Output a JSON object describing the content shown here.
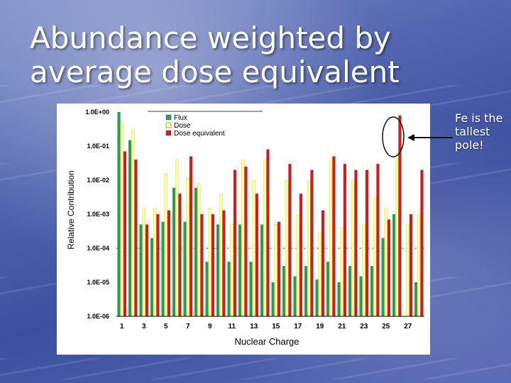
{
  "slide": {
    "title": "Abundance weighted by average dose equivalent",
    "callout": "Fe is the tallest pole!"
  },
  "chart_data": {
    "type": "bar",
    "ylabel": "Relative Contribution",
    "xlabel": "Nuclear Charge",
    "yscale": "log",
    "ylim": [
      1e-06,
      1
    ],
    "y_ticks": [
      "1.0E-06",
      "1.0E-05",
      "1.0E-04",
      "1.0E-03",
      "1.0E-02",
      "1.0E-01",
      "1.0E+00"
    ],
    "x": [
      1,
      2,
      3,
      4,
      5,
      6,
      7,
      8,
      9,
      10,
      11,
      12,
      13,
      14,
      15,
      16,
      17,
      18,
      19,
      20,
      21,
      22,
      23,
      24,
      25,
      26,
      27,
      28
    ],
    "x_tick_labels": [
      "1",
      "3",
      "5",
      "7",
      "9",
      "11",
      "13",
      "15",
      "17",
      "19",
      "21",
      "23",
      "25",
      "27"
    ],
    "legend": [
      "Flux",
      "Dose",
      "Dose equivalent"
    ],
    "legend_position": "top",
    "series": [
      {
        "name": "Flux",
        "color": "#2e9a55",
        "values": [
          1.0,
          0.15,
          0.0005,
          0.0002,
          0.0006,
          0.006,
          0.0006,
          0.006,
          4e-05,
          0.0005,
          4e-05,
          0.0005,
          4e-05,
          0.0005,
          1e-05,
          3e-05,
          1.5e-05,
          3e-05,
          1.2e-05,
          4e-05,
          1e-05,
          3e-05,
          1.5e-05,
          3e-05,
          0.0002,
          0.001,
          1e-06,
          1e-05
        ]
      },
      {
        "name": "Dose",
        "color": "#ffff99",
        "values": [
          0.5,
          0.3,
          0.0015,
          0.0015,
          0.015,
          0.04,
          0.012,
          0.008,
          0.0015,
          0.004,
          0.0005,
          0.04,
          0.01,
          0.04,
          0.0005,
          0.01,
          0.001,
          0.01,
          0.0003,
          0.04,
          0.0004,
          0.01,
          0.0005,
          0.003,
          0.0015,
          0.06,
          0.0005,
          0.001
        ]
      },
      {
        "name": "Dose equivalent",
        "color": "#cc1f1f",
        "values": [
          0.07,
          0.04,
          0.0005,
          0.001,
          0.0013,
          0.004,
          0.05,
          0.001,
          0.001,
          0.0013,
          0.02,
          0.025,
          0.004,
          0.08,
          0.0006,
          0.03,
          0.004,
          0.02,
          0.0013,
          0.05,
          0.03,
          0.02,
          0.02,
          0.03,
          0.0007,
          0.8,
          0.001,
          0.02
        ]
      }
    ]
  }
}
